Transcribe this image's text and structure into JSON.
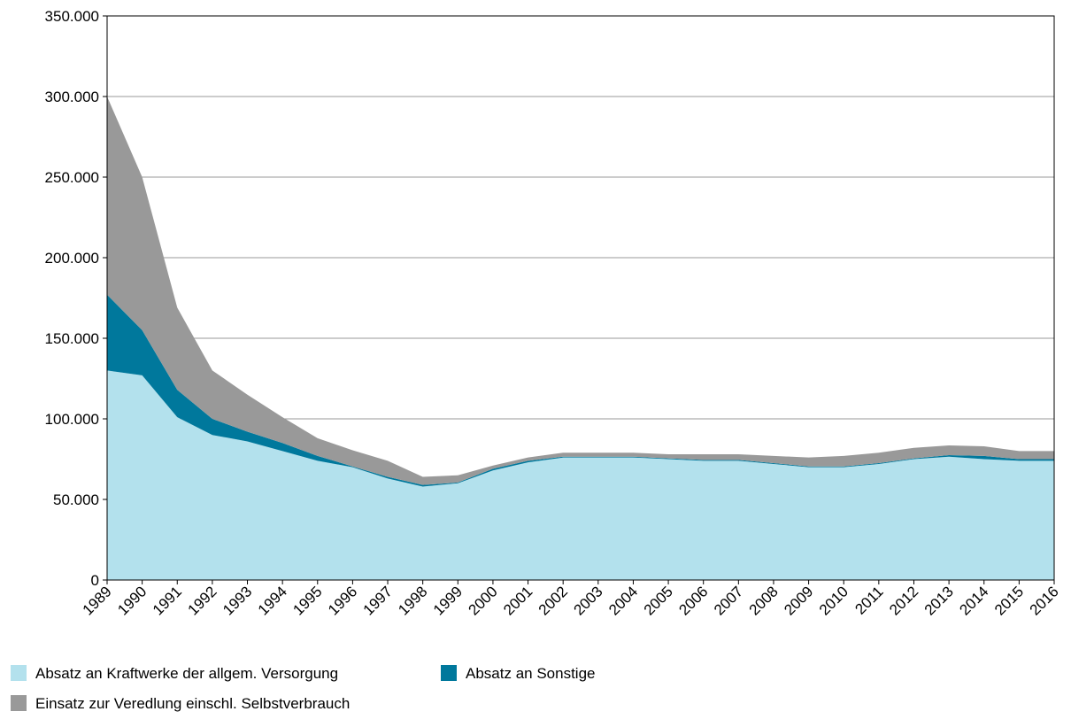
{
  "chart_data": {
    "type": "stacked-area",
    "categories": [
      "1989",
      "1990",
      "1991",
      "1992",
      "1993",
      "1994",
      "1995",
      "1996",
      "1997",
      "1998",
      "1999",
      "2000",
      "2001",
      "2002",
      "2003",
      "2004",
      "2005",
      "2006",
      "2007",
      "2008",
      "2009",
      "2010",
      "2011",
      "2012",
      "2013",
      "2014",
      "2015",
      "2016"
    ],
    "series": [
      {
        "name": "Absatz an Kraftwerke der allgem. Versorgung",
        "color": "#b3e1ed",
        "values": [
          130000,
          127000,
          101000,
          90000,
          86000,
          80000,
          74000,
          70000,
          63000,
          58000,
          60000,
          68000,
          73000,
          76000,
          76000,
          76000,
          75000,
          74000,
          74000,
          72000,
          70000,
          70000,
          72000,
          75000,
          76500,
          75000,
          74000,
          74000
        ]
      },
      {
        "name": "Absatz an Sonstige",
        "color": "#00789c",
        "values": [
          47000,
          28000,
          17000,
          10000,
          6000,
          5000,
          3000,
          500,
          1000,
          1000,
          500,
          1000,
          1000,
          500,
          500,
          500,
          500,
          500,
          500,
          500,
          500,
          500,
          500,
          500,
          1000,
          2000,
          1000,
          1000
        ]
      },
      {
        "name": "Einsatz zur Veredlung einschl. Selbstverbrauch",
        "color": "#999999",
        "values": [
          123000,
          95000,
          51000,
          30000,
          23000,
          16000,
          11000,
          10000,
          10000,
          5000,
          4500,
          2000,
          2000,
          2500,
          2500,
          2500,
          2500,
          3500,
          3500,
          4500,
          5500,
          6500,
          6500,
          6500,
          6000,
          6000,
          5000,
          5000
        ]
      }
    ],
    "ylim": [
      0,
      350000
    ],
    "yticks": [
      0,
      {
        "value": 50000,
        "label": "50.000"
      },
      {
        "value": 100000,
        "label": "100.000"
      },
      {
        "value": 150000,
        "label": "150.000"
      },
      {
        "value": 200000,
        "label": "200.000"
      },
      {
        "value": 250000,
        "label": "250.000"
      },
      {
        "value": 300000,
        "label": "300.000"
      },
      {
        "value": 350000,
        "label": "350.000"
      }
    ],
    "grid": true
  }
}
